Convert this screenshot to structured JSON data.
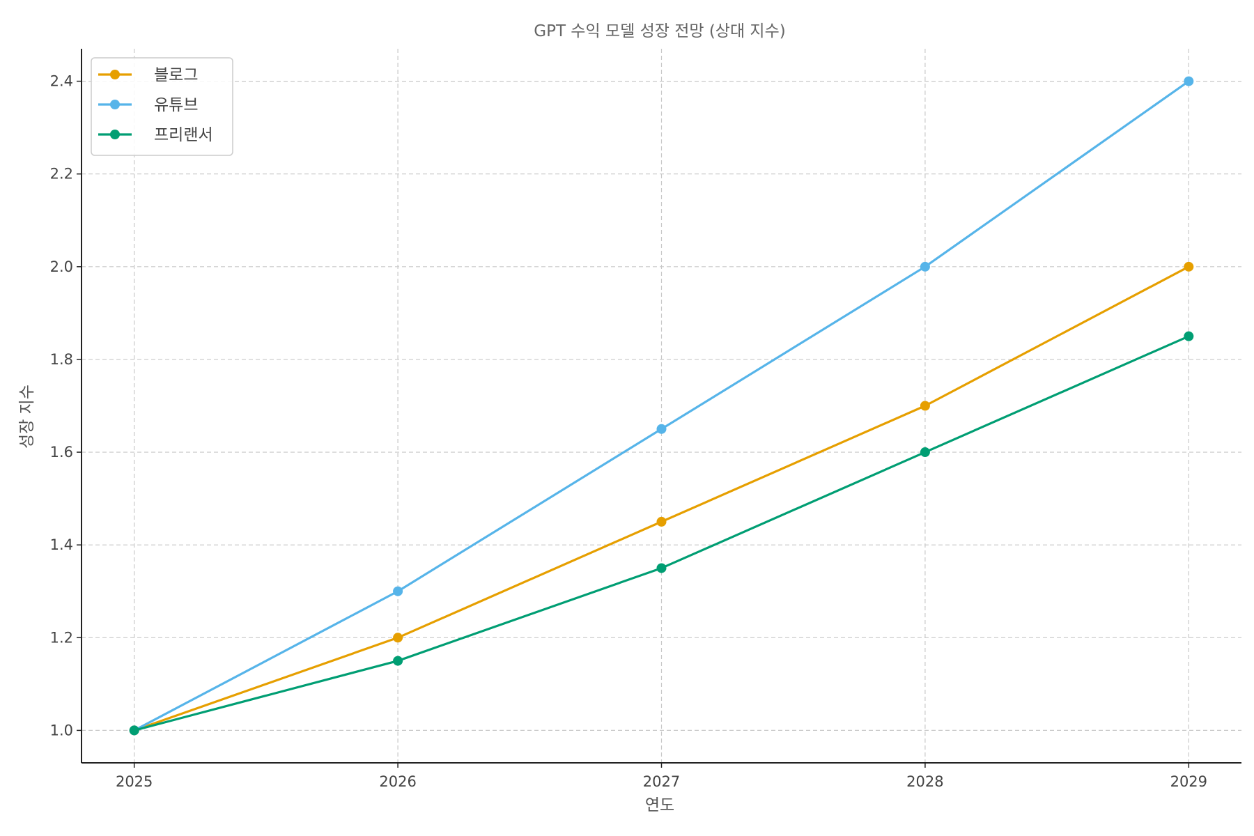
{
  "chart_data": {
    "type": "line",
    "title": "GPT 수익 모델 성장 전망 (상대 지수)",
    "xlabel": "연도",
    "ylabel": "성장 지수",
    "categories": [
      "2025",
      "2026",
      "2027",
      "2028",
      "2029"
    ],
    "x": [
      2025,
      2026,
      2027,
      2028,
      2029
    ],
    "xlim": [
      2024.8,
      2029.2
    ],
    "ylim": [
      0.93,
      2.47
    ],
    "yticks": [
      1.0,
      1.2,
      1.4,
      1.6,
      1.8,
      2.0,
      2.2,
      2.4
    ],
    "ytick_labels": [
      "1.0",
      "1.2",
      "1.4",
      "1.6",
      "1.8",
      "2.0",
      "2.2",
      "2.4"
    ],
    "grid": true,
    "legend_position": "top-left",
    "series": [
      {
        "name": "블로그",
        "color": "#E69F00",
        "values": [
          1.0,
          1.2,
          1.45,
          1.7,
          2.0
        ]
      },
      {
        "name": "유튜브",
        "color": "#56B4E9",
        "values": [
          1.0,
          1.3,
          1.65,
          2.0,
          2.4
        ]
      },
      {
        "name": "프리랜서",
        "color": "#009E73",
        "values": [
          1.0,
          1.15,
          1.35,
          1.6,
          1.85
        ]
      }
    ]
  }
}
